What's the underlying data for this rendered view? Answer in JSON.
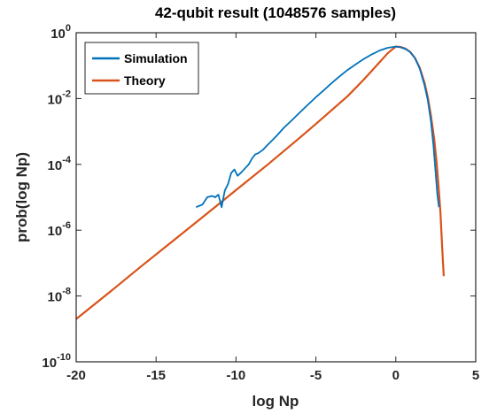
{
  "chart_data": {
    "type": "line",
    "title": "42-qubit result (1048576 samples)",
    "xlabel": "log Np",
    "ylabel": "prob(log Np)",
    "xlim": [
      -20,
      5
    ],
    "ylim_log10": [
      -10,
      0
    ],
    "y_scale": "log",
    "grid": false,
    "legend_position": "top-left",
    "x_ticks": [
      -20,
      -15,
      -10,
      -5,
      0,
      5
    ],
    "y_ticks": [
      {
        "base": "10",
        "exp": "0",
        "value": 1
      },
      {
        "base": "10",
        "exp": "-2",
        "value": 0.01
      },
      {
        "base": "10",
        "exp": "-4",
        "value": 0.0001
      },
      {
        "base": "10",
        "exp": "-6",
        "value": 1e-06
      },
      {
        "base": "10",
        "exp": "-8",
        "value": 1e-08
      },
      {
        "base": "10",
        "exp": "-10",
        "value": 1e-10
      }
    ],
    "series": [
      {
        "name": "Simulation",
        "color": "#0072BD",
        "x": [
          -12.5,
          -12.1,
          -11.8,
          -11.5,
          -11.3,
          -11.1,
          -10.9,
          -10.7,
          -10.5,
          -10.3,
          -10.1,
          -9.9,
          -9.7,
          -9.5,
          -9.2,
          -9.0,
          -8.8,
          -8.6,
          -8.3,
          -8.0,
          -7.5,
          -7.0,
          -6.5,
          -6.0,
          -5.5,
          -5.0,
          -4.5,
          -4.0,
          -3.5,
          -3.0,
          -2.5,
          -2.0,
          -1.5,
          -1.0,
          -0.5,
          0.0,
          0.3,
          0.6,
          0.9,
          1.2,
          1.5,
          1.8,
          2.0,
          2.2,
          2.35,
          2.5,
          2.6,
          2.7
        ],
        "y": [
          5e-06,
          6e-06,
          1e-05,
          1.1e-05,
          1e-05,
          1.2e-05,
          5e-06,
          1.6e-05,
          2.5e-05,
          5.5e-05,
          7e-05,
          4.5e-05,
          5.5e-05,
          7e-05,
          0.0001,
          0.00015,
          0.0002,
          0.00022,
          0.00028,
          0.0004,
          0.0007,
          0.0013,
          0.0022,
          0.0038,
          0.0065,
          0.011,
          0.018,
          0.03,
          0.048,
          0.075,
          0.11,
          0.16,
          0.22,
          0.29,
          0.35,
          0.38,
          0.36,
          0.32,
          0.26,
          0.17,
          0.08,
          0.025,
          0.009,
          0.002,
          0.0004,
          5e-05,
          1.2e-05,
          5e-06
        ]
      },
      {
        "name": "Theory",
        "color": "#D95319",
        "x": [
          -20,
          -18,
          -16,
          -14,
          -12,
          -10,
          -8,
          -6,
          -5,
          -4,
          -3,
          -2,
          -1.5,
          -1,
          -0.5,
          0,
          0.3,
          0.6,
          0.9,
          1.2,
          1.5,
          1.8,
          2.0,
          2.2,
          2.4,
          2.55,
          2.7,
          2.8,
          2.9,
          3.0
        ],
        "y": [
          2e-09,
          1.2e-08,
          7.5e-08,
          4.5e-07,
          2.7e-06,
          1.65e-05,
          0.0001,
          0.00065,
          0.0017,
          0.0045,
          0.012,
          0.038,
          0.07,
          0.13,
          0.24,
          0.38,
          0.37,
          0.33,
          0.26,
          0.17,
          0.085,
          0.03,
          0.011,
          0.003,
          0.0006,
          0.00012,
          1.5e-05,
          3e-06,
          3e-07,
          4e-08
        ]
      }
    ]
  }
}
